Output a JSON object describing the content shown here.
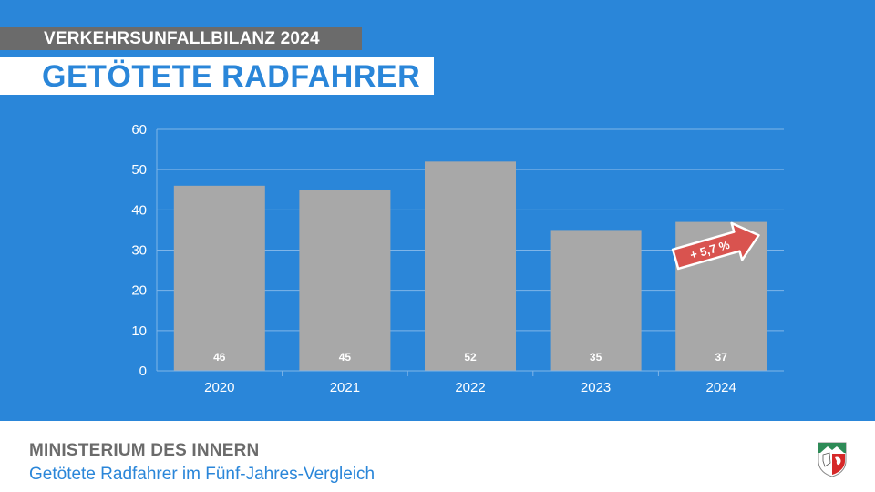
{
  "header": {
    "kicker": "VERKEHRSUNFALLBILANZ 2024",
    "title": "GETÖTETE RADFAHRER"
  },
  "footer": {
    "ministry": "MINISTERIUM DES INNERN",
    "subtitle": "Getötete Radfahrer im Fünf-Jahres-Vergleich",
    "logo_icon": "nrw-coat-of-arms-icon"
  },
  "colors": {
    "background": "#2a86d9",
    "bar": "#a8a8a8",
    "grid": "#7fb5e8",
    "badge": "#d9534f",
    "text_light": "#ffffff"
  },
  "chart_data": {
    "type": "bar",
    "title": "GETÖTETE RADFAHRER",
    "categories": [
      "2020",
      "2021",
      "2022",
      "2023",
      "2024"
    ],
    "values": [
      46,
      45,
      52,
      35,
      37
    ],
    "data_labels": [
      "46",
      "45",
      "52",
      "35",
      "37"
    ],
    "ylim": [
      0,
      60
    ],
    "yticks": [
      0,
      10,
      20,
      30,
      40,
      50,
      60
    ],
    "grid": true,
    "xlabel": "",
    "ylabel": "",
    "annotation": {
      "text": "+ 5,7 %",
      "from_category": "2023",
      "to_category": "2024"
    }
  }
}
